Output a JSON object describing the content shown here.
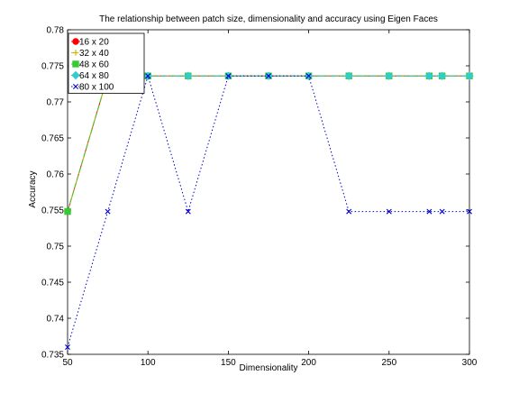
{
  "chart_data": {
    "type": "line",
    "title": "The relationship between patch size, dimensionality and accuracy using Eigen Faces",
    "xlabel": "Dimensionality",
    "ylabel": "Accuracy",
    "xlim": [
      50,
      300
    ],
    "ylim": [
      0.735,
      0.78
    ],
    "xticks": [
      50,
      100,
      150,
      200,
      250,
      300
    ],
    "yticks": [
      0.735,
      0.74,
      0.745,
      0.75,
      0.755,
      0.76,
      0.765,
      0.77,
      0.775,
      0.78
    ],
    "grid": false,
    "legend_position": "top-left",
    "series": [
      {
        "name": "16 x 20",
        "color": "#ff0000",
        "marker": "dot",
        "line": "solid",
        "x": [
          50,
          75,
          100,
          125,
          150,
          175,
          200,
          225,
          250,
          275,
          283,
          300
        ],
        "y": [
          0.7548,
          0.7736,
          0.7736,
          0.7736,
          0.7736,
          0.7736,
          0.7736,
          0.7736,
          0.7736,
          0.7736,
          0.7736,
          0.7736
        ]
      },
      {
        "name": "32 x 40",
        "color": "#ccbb00",
        "marker": "plus",
        "line": "dashdot",
        "x": [
          50,
          75,
          100,
          125,
          150,
          175,
          200,
          225,
          250,
          275,
          283,
          300
        ],
        "y": [
          0.7548,
          0.7736,
          0.7736,
          0.7736,
          0.7736,
          0.7736,
          0.7736,
          0.7736,
          0.7736,
          0.7736,
          0.7736,
          0.7736
        ]
      },
      {
        "name": "48 x 60",
        "color": "#33cc33",
        "marker": "square",
        "line": "dashed",
        "x": [
          50,
          75,
          100,
          125,
          150,
          175,
          200,
          225,
          250,
          275,
          283,
          300
        ],
        "y": [
          0.7548,
          0.7736,
          0.7736,
          0.7736,
          0.7736,
          0.7736,
          0.7736,
          0.7736,
          0.7736,
          0.7736,
          0.7736,
          0.7736
        ]
      },
      {
        "name": "64 x 80",
        "color": "#33cccc",
        "marker": "diamond",
        "line": "dashdot",
        "x": [
          100,
          125,
          150,
          175,
          200,
          225,
          250,
          275,
          283,
          300
        ],
        "y": [
          0.7736,
          0.7736,
          0.7736,
          0.7736,
          0.7736,
          0.7736,
          0.7736,
          0.7736,
          0.7736,
          0.7736
        ]
      },
      {
        "name": "80 x 100",
        "color": "#0000cc",
        "marker": "x",
        "line": "dotted",
        "x": [
          50,
          75,
          100,
          125,
          150,
          175,
          200,
          225,
          250,
          275,
          283,
          300
        ],
        "y": [
          0.736,
          0.7548,
          0.7736,
          0.7548,
          0.7736,
          0.7736,
          0.7736,
          0.7548,
          0.7548,
          0.7548,
          0.7548,
          0.7548
        ]
      }
    ]
  }
}
